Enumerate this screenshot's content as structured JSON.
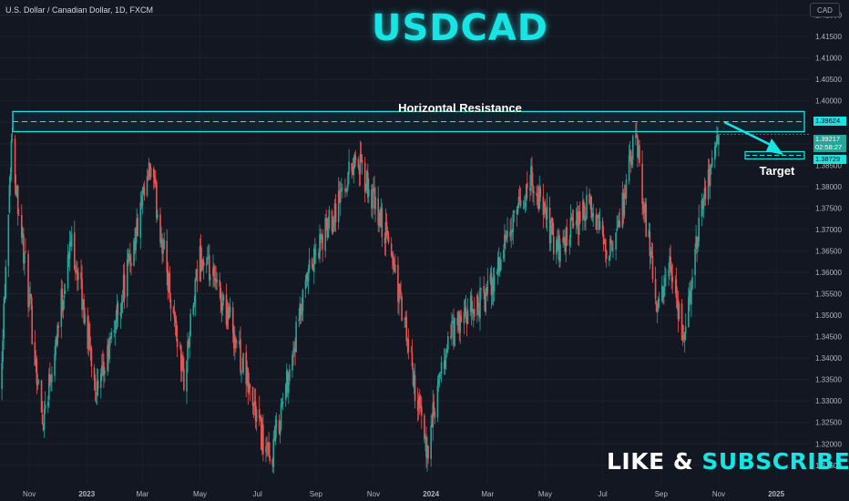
{
  "header": {
    "symbol_line": "U.S. Dollar / Canadian Dollar, 1D, FXCM",
    "currency_button": "CAD"
  },
  "overlay": {
    "title": "USDCAD",
    "resistance_label": "Horizontal Resistance",
    "target_label": "Target",
    "cta_like": "LIKE &",
    "cta_subscribe": "SUBSCRIBE"
  },
  "price_tags": {
    "resistance": "1.39624",
    "current": "1.39217",
    "countdown": "02:58:27",
    "target": "1.38729"
  },
  "colors": {
    "background": "#131722",
    "up_candle": "#26a69a",
    "down_candle": "#ef5350",
    "accent": "#18e4e4"
  },
  "chart_data": {
    "type": "candlestick",
    "title": "",
    "x_tick_labels": [
      "Nov",
      "2023",
      "Mar",
      "May",
      "Jul",
      "Sep",
      "Nov",
      "2024",
      "Mar",
      "May",
      "Jul",
      "Sep",
      "Nov",
      "2025"
    ],
    "y_tick_labels": [
      "1.42000",
      "1.41500",
      "1.41000",
      "1.40500",
      "1.40000",
      "1.39500",
      "1.39000",
      "1.38500",
      "1.38000",
      "1.37500",
      "1.37000",
      "1.36500",
      "1.36000",
      "1.35500",
      "1.35000",
      "1.34500",
      "1.34000",
      "1.33500",
      "1.33000",
      "1.32500",
      "1.32000",
      "1.31500"
    ],
    "ylim": [
      1.3105,
      1.4235
    ],
    "price_anchors": [
      {
        "date": "2022-10-01",
        "close": 1.333
      },
      {
        "date": "2022-10-13",
        "close": 1.391
      },
      {
        "date": "2022-11-15",
        "close": 1.325
      },
      {
        "date": "2022-12-16",
        "close": 1.368
      },
      {
        "date": "2023-01-13",
        "close": 1.331
      },
      {
        "date": "2023-03-10",
        "close": 1.384
      },
      {
        "date": "2023-04-14",
        "close": 1.335
      },
      {
        "date": "2023-05-01",
        "close": 1.364
      },
      {
        "date": "2023-06-01",
        "close": 1.35
      },
      {
        "date": "2023-07-14",
        "close": 1.315
      },
      {
        "date": "2023-08-25",
        "close": 1.36
      },
      {
        "date": "2023-10-13",
        "close": 1.387
      },
      {
        "date": "2023-11-20",
        "close": 1.365
      },
      {
        "date": "2023-12-27",
        "close": 1.318
      },
      {
        "date": "2024-01-20",
        "close": 1.345
      },
      {
        "date": "2024-03-01",
        "close": 1.355
      },
      {
        "date": "2024-04-16",
        "close": 1.382
      },
      {
        "date": "2024-05-15",
        "close": 1.365
      },
      {
        "date": "2024-06-15",
        "close": 1.375
      },
      {
        "date": "2024-07-12",
        "close": 1.364
      },
      {
        "date": "2024-08-05",
        "close": 1.392
      },
      {
        "date": "2024-08-28",
        "close": 1.35
      },
      {
        "date": "2024-09-10",
        "close": 1.361
      },
      {
        "date": "2024-09-25",
        "close": 1.344
      },
      {
        "date": "2024-10-15",
        "close": 1.378
      },
      {
        "date": "2024-11-02",
        "close": 1.392
      }
    ],
    "annotations": {
      "horizontal_resistance": {
        "from": 1.3928,
        "to": 1.3975,
        "label": "Horizontal Resistance"
      },
      "target": {
        "price": 1.38729,
        "label": "Target"
      }
    }
  }
}
